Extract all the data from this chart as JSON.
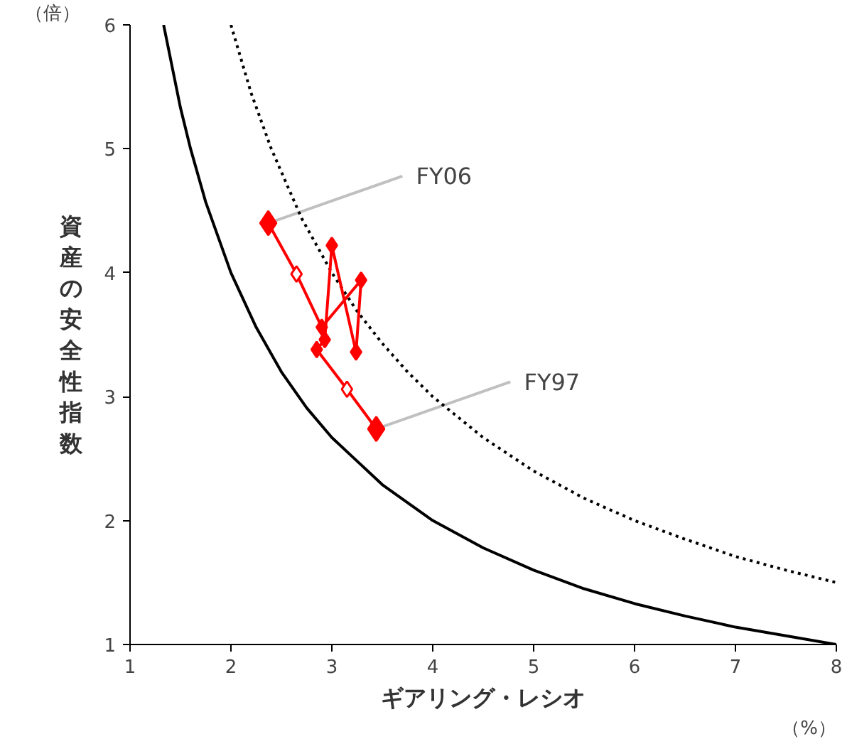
{
  "chart_data": {
    "type": "line",
    "xlabel": "ギアリング・レシオ",
    "ylabel": "資産の安全性指数",
    "xlim": [
      1,
      8
    ],
    "ylim": [
      1,
      6
    ],
    "xticks": [
      1,
      2,
      3,
      4,
      5,
      6,
      7,
      8
    ],
    "yticks": [
      1,
      2,
      3,
      4,
      5,
      6
    ],
    "grid": false,
    "series": [
      {
        "color": "#000000",
        "line_style": "solid",
        "marker": "none",
        "x": [
          1.333,
          1.5,
          1.6,
          1.75,
          2,
          2.25,
          2.5,
          2.75,
          3,
          3.5,
          4,
          4.5,
          5,
          5.5,
          6,
          6.5,
          7,
          7.5,
          8
        ],
        "values": [
          6,
          5.33,
          5,
          4.57,
          4,
          3.56,
          3.2,
          2.91,
          2.67,
          2.29,
          2,
          1.78,
          1.6,
          1.45,
          1.33,
          1.23,
          1.14,
          1.07,
          1
        ]
      },
      {
        "color": "#000000",
        "line_style": "dotted",
        "marker": "none",
        "x": [
          2,
          2.2,
          2.4,
          2.7,
          3,
          3.25,
          3.5,
          3.75,
          4,
          4.5,
          5,
          5.5,
          6,
          6.5,
          7,
          7.5,
          8
        ],
        "values": [
          6,
          5.45,
          5,
          4.44,
          4,
          3.69,
          3.43,
          3.2,
          3,
          2.67,
          2.4,
          2.18,
          2,
          1.85,
          1.71,
          1.6,
          1.5
        ]
      },
      {
        "color": "#ff0000",
        "line_style": "solid",
        "marker": "none",
        "x": [
          3.44,
          3.15,
          2.85,
          2.93,
          3.0,
          3.24,
          3.29,
          2.9,
          2.65,
          2.37
        ],
        "values": [
          2.74,
          3.06,
          3.38,
          3.46,
          4.22,
          3.36,
          3.94,
          3.56,
          3.99,
          4.4
        ]
      },
      {
        "type": "scatter",
        "color": "#ff0000",
        "marker": "diamond",
        "x": [
          3.44,
          2.37
        ],
        "values": [
          2.74,
          4.4
        ]
      },
      {
        "type": "scatter",
        "color": "#ff0000",
        "marker": "diamond",
        "x": [
          2.85,
          2.93,
          3.0,
          3.24,
          3.29,
          2.9
        ],
        "values": [
          3.38,
          3.46,
          4.22,
          3.36,
          3.94,
          3.56
        ]
      },
      {
        "type": "scatter",
        "color": "#ff0000",
        "marker": "diamond",
        "x": [
          3.15,
          2.65
        ],
        "values": [
          3.06,
          3.99
        ]
      }
    ],
    "annotations": [
      {
        "text": "FY06",
        "x": 2.37,
        "y": 4.4
      },
      {
        "text": "FY97",
        "x": 3.44,
        "y": 2.74
      },
      "（倍）",
      "（%）"
    ]
  }
}
